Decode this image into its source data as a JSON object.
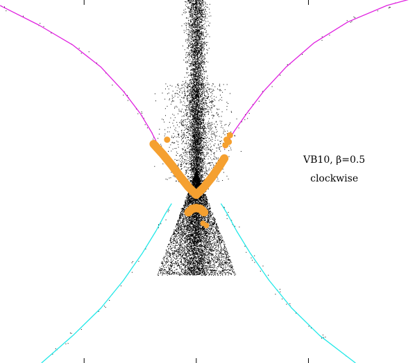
{
  "chart_data": {
    "type": "scatter",
    "title": "",
    "xlabel": "",
    "ylabel": "",
    "xlim": [
      -1.75,
      1.95
    ],
    "ylim": [
      -1.55,
      1.75
    ],
    "x_ticks": [
      -1,
      0,
      1
    ],
    "grid": false,
    "legend": "none",
    "annotations": [
      {
        "text": "VB10, β=0.5",
        "x": 1.23,
        "y": 0.27
      },
      {
        "text": "clockwise",
        "x": 1.23,
        "y": 0.1
      }
    ],
    "colors": {
      "upper_curve": "#e020e0",
      "lower_curve": "#20e8e8",
      "orange": "#f5a030",
      "dust": "#000000"
    },
    "curves": [
      {
        "color": "magenta",
        "x": [
          -1.75,
          -1.4,
          -1.1,
          -0.85,
          -0.65,
          -0.5,
          -0.4,
          -0.35,
          -0.32
        ],
        "y": [
          1.7,
          1.52,
          1.34,
          1.14,
          0.92,
          0.72,
          0.55,
          0.45,
          0.4
        ]
      },
      {
        "color": "magenta",
        "x": [
          0.25,
          0.28,
          0.34,
          0.45,
          0.6,
          0.8,
          1.05,
          1.35,
          1.7,
          1.95
        ],
        "y": [
          0.4,
          0.46,
          0.56,
          0.72,
          0.92,
          1.14,
          1.36,
          1.55,
          1.7,
          1.77
        ]
      },
      {
        "color": "cyan",
        "x": [
          -1.38,
          -1.1,
          -0.85,
          -0.65,
          -0.48,
          -0.36,
          -0.28,
          -0.22
        ],
        "y": [
          -1.55,
          -1.3,
          -1.05,
          -0.8,
          -0.55,
          -0.35,
          -0.2,
          -0.1
        ]
      },
      {
        "color": "cyan",
        "x": [
          0.22,
          0.28,
          0.36,
          0.48,
          0.65,
          0.85,
          1.1,
          1.42
        ],
        "y": [
          -0.1,
          -0.2,
          -0.35,
          -0.55,
          -0.8,
          -1.05,
          -1.3,
          -1.55
        ]
      }
    ],
    "orange_points": {
      "v_left": [
        [
          -0.38,
          0.44
        ],
        [
          -0.3,
          0.35
        ],
        [
          -0.22,
          0.25
        ],
        [
          -0.14,
          0.14
        ],
        [
          -0.07,
          0.05
        ],
        [
          0.0,
          -0.02
        ]
      ],
      "v_right": [
        [
          0.0,
          -0.02
        ],
        [
          0.07,
          0.05
        ],
        [
          0.14,
          0.14
        ],
        [
          0.2,
          0.23
        ],
        [
          0.25,
          0.31
        ]
      ],
      "scatter": [
        [
          -0.26,
          0.48
        ],
        [
          0.26,
          0.43
        ],
        [
          0.29,
          0.46
        ],
        [
          0.3,
          0.52
        ],
        [
          0.27,
          0.48
        ]
      ],
      "arc": [
        [
          -0.07,
          -0.18
        ],
        [
          -0.04,
          -0.15
        ],
        [
          0.0,
          -0.14
        ],
        [
          0.04,
          -0.15
        ],
        [
          0.07,
          -0.18
        ]
      ],
      "blob": [
        [
          0.06,
          -0.28
        ],
        [
          0.09,
          -0.3
        ]
      ]
    }
  }
}
